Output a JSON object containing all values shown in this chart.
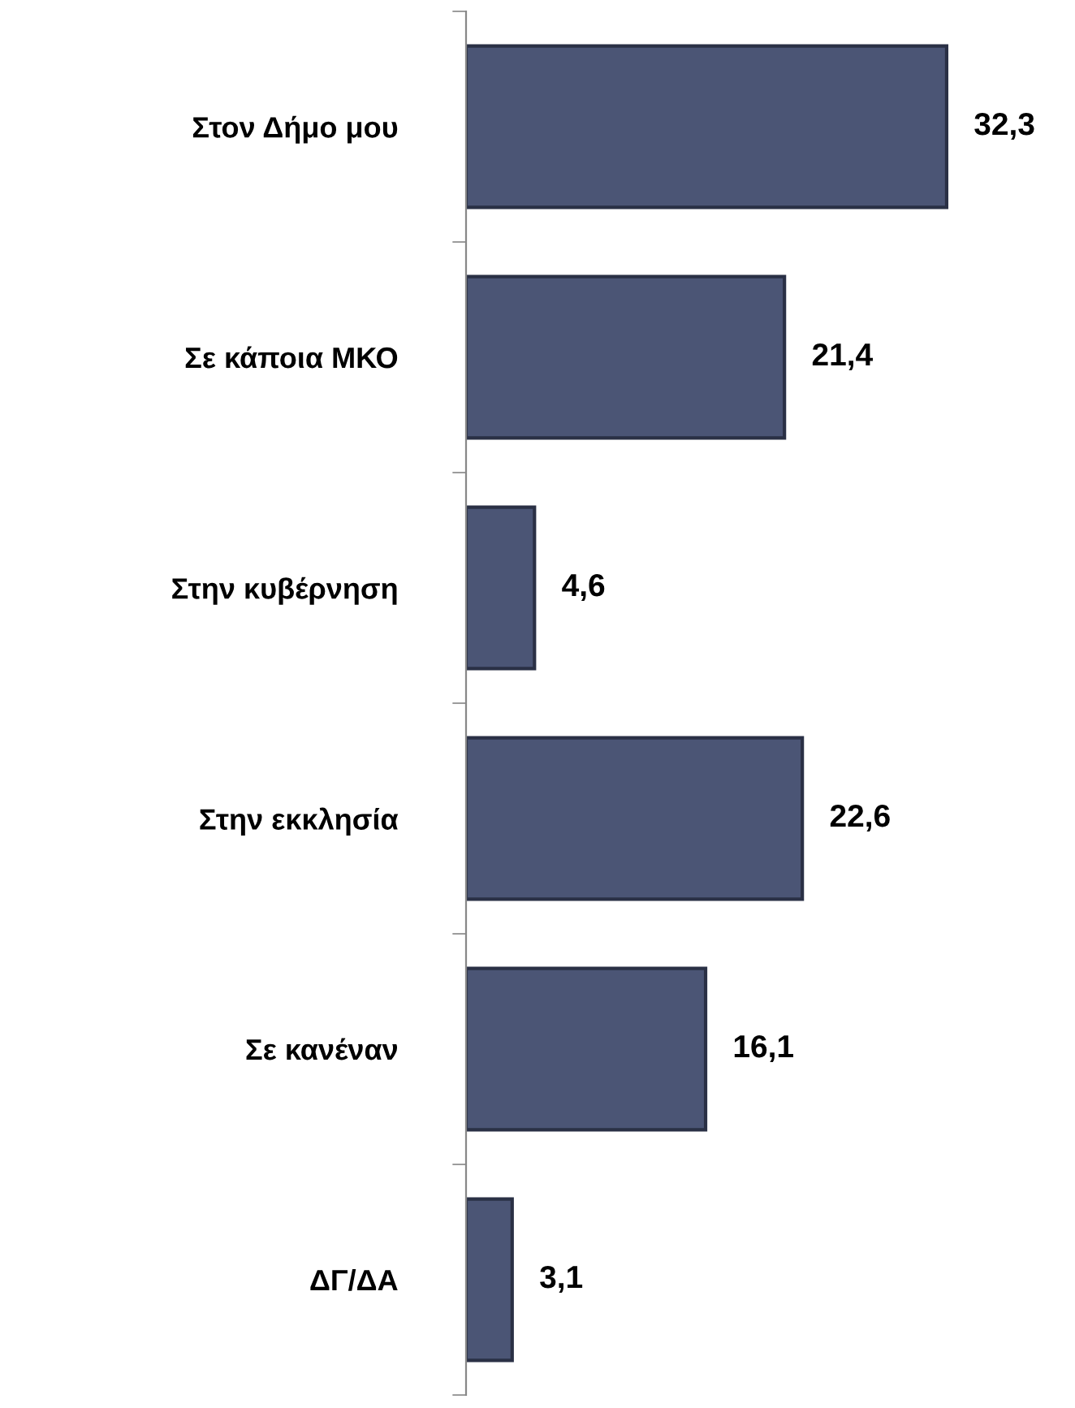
{
  "chart_data": {
    "type": "bar",
    "orientation": "horizontal",
    "categories": [
      "Στον Δήμο μου",
      "Σε κάποια ΜΚΟ",
      "Στην κυβέρνηση",
      "Στην εκκλησία",
      "Σε κανέναν",
      "ΔΓ/ΔΑ"
    ],
    "values": [
      32.3,
      21.4,
      4.6,
      22.6,
      16.1,
      3.1
    ],
    "value_labels": [
      "32,3",
      "21,4",
      "4,6",
      "22,6",
      "16,1",
      "3,1"
    ],
    "color": "#4b5575",
    "grid": false,
    "legend": false
  }
}
